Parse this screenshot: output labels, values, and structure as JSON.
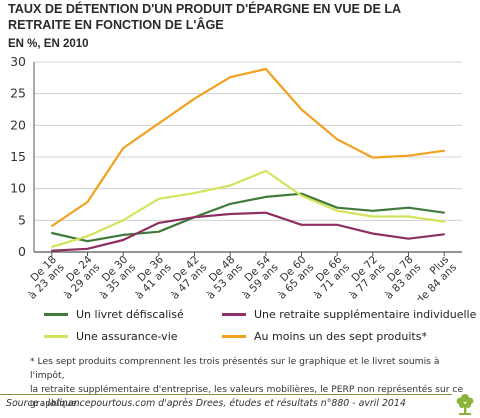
{
  "header": {
    "title": "TAUX DE DÉTENTION D'UN PRODUIT D'ÉPARGNE EN VUE DE LA RETRAITE EN FONCTION DE L'ÂGE",
    "subtitle": "EN %, EN 2010"
  },
  "chart_data": {
    "type": "line",
    "title": "TAUX DE DÉTENTION D'UN PRODUIT D'ÉPARGNE EN VUE DE LA RETRAITE EN FONCTION DE L'ÂGE",
    "subtitle": "EN %, EN 2010",
    "categories": [
      [
        "De 18",
        "à 23 ans"
      ],
      [
        "De 24",
        "à 29 ans"
      ],
      [
        "De 30",
        "à 35 ans"
      ],
      [
        "De 36",
        "à 41 ans"
      ],
      [
        "De 42",
        "à 47 ans"
      ],
      [
        "De 48",
        "à 53 ans"
      ],
      [
        "De 54",
        "à 59 ans"
      ],
      [
        "De 60",
        "à 65 ans"
      ],
      [
        "De 66",
        "à 71 ans"
      ],
      [
        "De 72",
        "à 77 ans"
      ],
      [
        "De 78",
        "à 83 ans"
      ],
      [
        "Plus",
        "de 84 ans"
      ]
    ],
    "ylim": [
      0,
      30
    ],
    "yticks": [
      0,
      5,
      10,
      15,
      20,
      25,
      30
    ],
    "grid": true,
    "series": [
      {
        "name": "Un livret défiscalisé",
        "color": "#3f7a3a",
        "values": [
          3.0,
          1.7,
          2.7,
          3.2,
          5.5,
          7.6,
          8.7,
          9.2,
          7.0,
          6.5,
          7.0,
          6.2
        ]
      },
      {
        "name": "Une retraite supplémentaire individuelle",
        "color": "#8e2f63",
        "values": [
          0.2,
          0.5,
          1.9,
          4.6,
          5.5,
          6.0,
          6.2,
          4.3,
          4.3,
          2.9,
          2.1,
          2.8
        ]
      },
      {
        "name": "Une assurance-vie",
        "color": "#d5e35a",
        "values": [
          0.8,
          2.5,
          5.0,
          8.4,
          9.3,
          10.5,
          12.8,
          8.9,
          6.5,
          5.6,
          5.6,
          4.8
        ]
      },
      {
        "name": "Au moins un des sept produits*",
        "color": "#f2a11f",
        "values": [
          4.1,
          7.9,
          16.4,
          20.3,
          24.2,
          27.6,
          28.9,
          22.5,
          17.8,
          14.9,
          15.2,
          16.0
        ]
      }
    ]
  },
  "footnote": {
    "line1": "* Les sept produits comprennent les trois présentés sur le graphique et le livret soumis à l'impôt,",
    "line2": "la retraite supplémentaire d'entreprise, les valeurs mobilières, le PERP non représentés sur ce graphique."
  },
  "source": "Source : lafinancepourtous.com d'après Drees, études et résultats n°880 - avril 2014",
  "logo": {
    "icon": "tree-icon",
    "color": "#8bb33a"
  }
}
